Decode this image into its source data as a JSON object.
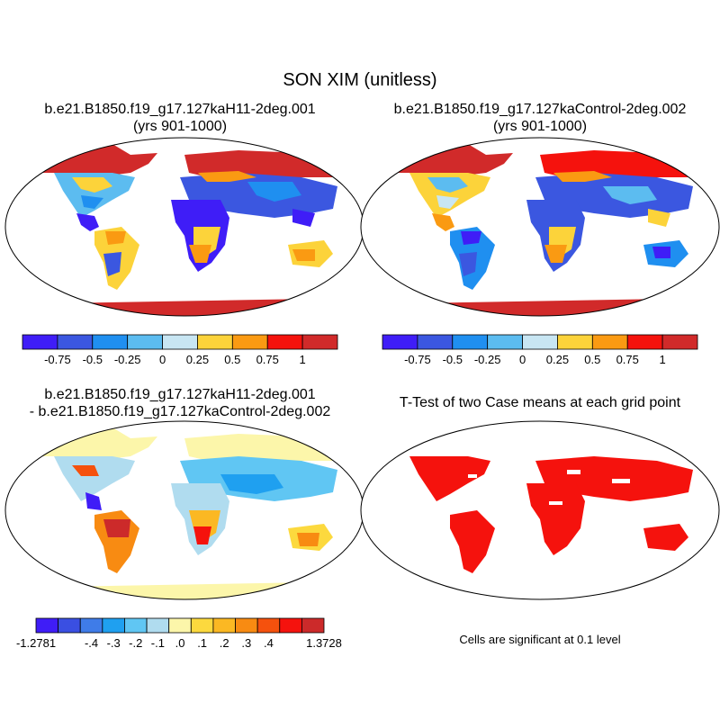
{
  "title": "SON XIM (unitless)",
  "panels": [
    {
      "title_line1": "b.e21.B1850.f19_g17.127kaH11-2deg.001",
      "title_line2": "(yrs 901-1000)"
    },
    {
      "title_line1": "b.e21.B1850.f19_g17.127kaControl-2deg.002",
      "title_line2": "(yrs 901-1000)"
    },
    {
      "title_line1": "b.e21.B1850.f19_g17.127kaH11-2deg.001",
      "title_line2": "- b.e21.B1850.f19_g17.127kaControl-2deg.002"
    },
    {
      "title_line1": "T-Test of two Case means at each grid point",
      "title_line2": ""
    }
  ],
  "colorbar_abs": {
    "colors": [
      "#3f1df7",
      "#3b57e0",
      "#1f8ff0",
      "#5cbcf0",
      "#c8e6f3",
      "#fcd33a",
      "#fa9a12",
      "#f5120d",
      "#d12a2a"
    ],
    "labels": [
      "-0.75",
      "-0.5",
      "-0.25",
      "0",
      "0.25",
      "0.5",
      "0.75",
      "1"
    ]
  },
  "colorbar_diff": {
    "colors": [
      "#3f1df7",
      "#3a4fe2",
      "#3f7ce8",
      "#1fa0f0",
      "#60c6f3",
      "#b0dcef",
      "#fcf6aa",
      "#fcd93e",
      "#fbb823",
      "#f88b12",
      "#f5510d",
      "#f5120d",
      "#cc2a2a"
    ],
    "labels": [
      "-1.2781",
      "-.4",
      "-.3",
      "-.2",
      "-.1",
      ".0",
      ".1",
      ".2",
      ".3",
      ".4",
      "1.3728"
    ]
  },
  "footnote": "Cells are significant at 0.1 level"
}
